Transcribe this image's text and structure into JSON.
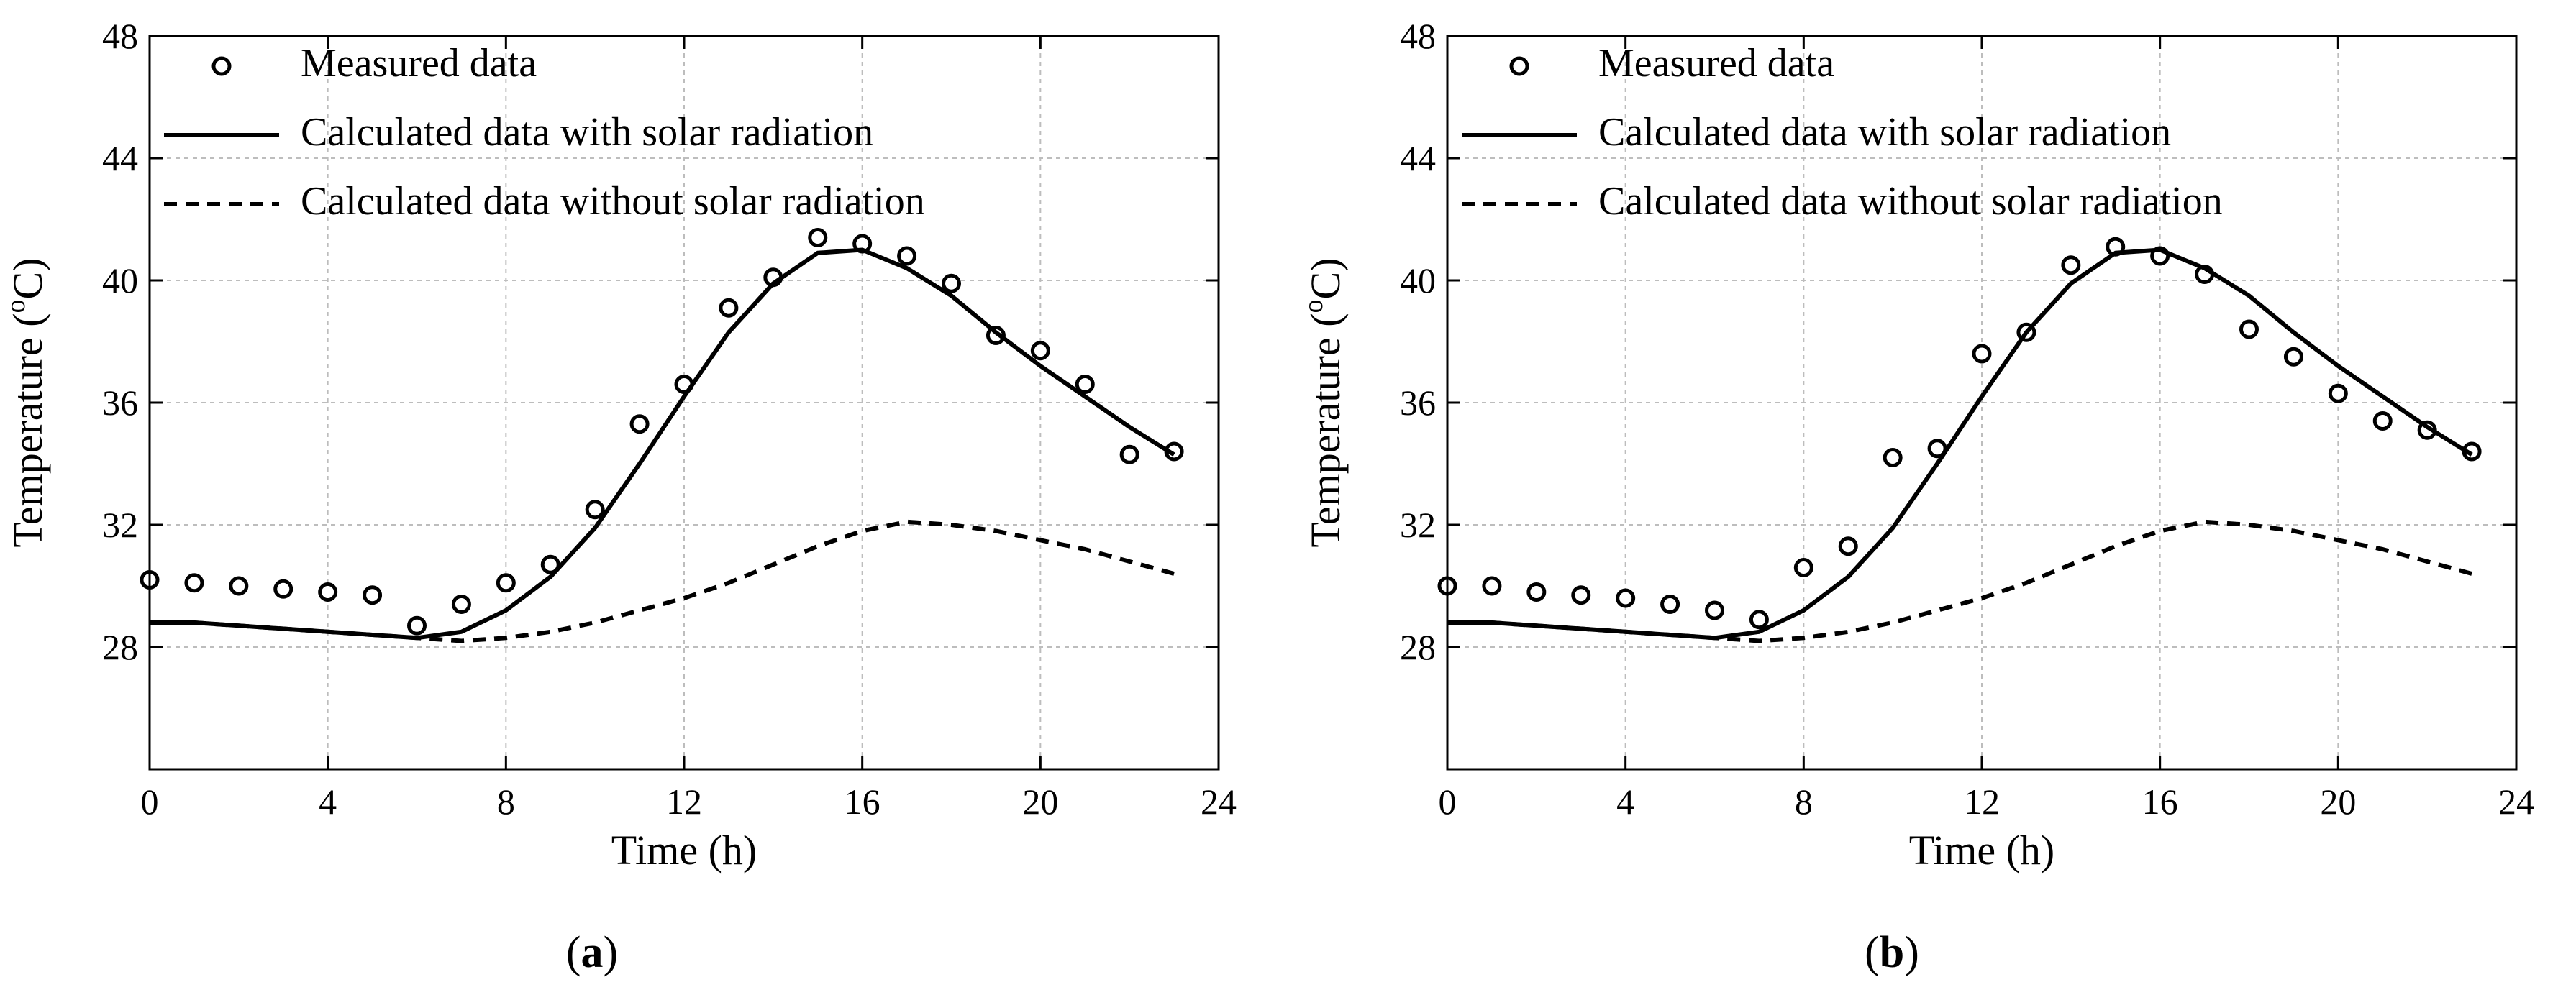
{
  "chart_data": [
    {
      "type": "line",
      "panel_label": "a",
      "xlabel": "Time (h)",
      "ylabel_main": "Temperature (",
      "ylabel_sup": "o",
      "ylabel_tail": "C)",
      "xlim": [
        0,
        24
      ],
      "ylim": [
        24,
        48
      ],
      "xticks": [
        0,
        4,
        8,
        12,
        16,
        20,
        24
      ],
      "yticks": [
        28,
        32,
        36,
        40,
        44,
        48
      ],
      "grid": true,
      "legend_position": "top-left",
      "series": [
        {
          "name": "Measured data",
          "style": "circle-markers",
          "x": [
            0,
            1,
            2,
            3,
            4,
            5,
            6,
            7,
            8,
            9,
            10,
            11,
            12,
            13,
            14,
            15,
            16,
            17,
            18,
            19,
            20,
            21,
            22,
            23
          ],
          "y": [
            30.2,
            30.1,
            30.0,
            29.9,
            29.8,
            29.7,
            28.7,
            29.4,
            30.1,
            30.7,
            32.5,
            35.3,
            36.6,
            39.1,
            40.1,
            41.4,
            41.2,
            40.8,
            39.9,
            38.2,
            37.7,
            36.6,
            34.3,
            34.4
          ]
        },
        {
          "name": "Calculated data with solar radiation",
          "style": "solid",
          "x": [
            0,
            1,
            2,
            3,
            4,
            5,
            6,
            7,
            8,
            9,
            10,
            11,
            12,
            13,
            14,
            15,
            16,
            17,
            18,
            19,
            20,
            21,
            22,
            23
          ],
          "y": [
            28.8,
            28.8,
            28.7,
            28.6,
            28.5,
            28.4,
            28.3,
            28.5,
            29.2,
            30.3,
            31.9,
            34.0,
            36.2,
            38.3,
            39.9,
            40.9,
            41.0,
            40.4,
            39.5,
            38.3,
            37.2,
            36.2,
            35.2,
            34.3
          ]
        },
        {
          "name": "Calculated data without solar radiation",
          "style": "dashed",
          "x": [
            0,
            1,
            2,
            3,
            4,
            5,
            6,
            7,
            8,
            9,
            10,
            11,
            12,
            13,
            14,
            15,
            16,
            17,
            18,
            19,
            20,
            21,
            22,
            23
          ],
          "y": [
            28.8,
            28.8,
            28.7,
            28.6,
            28.5,
            28.4,
            28.3,
            28.2,
            28.3,
            28.5,
            28.8,
            29.2,
            29.6,
            30.1,
            30.7,
            31.3,
            31.8,
            32.1,
            32.0,
            31.8,
            31.5,
            31.2,
            30.8,
            30.4
          ]
        }
      ]
    },
    {
      "type": "line",
      "panel_label": "b",
      "xlabel": "Time (h)",
      "ylabel_main": "Temperature (",
      "ylabel_sup": "o",
      "ylabel_tail": "C)",
      "xlim": [
        0,
        24
      ],
      "ylim": [
        24,
        48
      ],
      "xticks": [
        0,
        4,
        8,
        12,
        16,
        20,
        24
      ],
      "yticks": [
        28,
        32,
        36,
        40,
        44,
        48
      ],
      "grid": true,
      "legend_position": "top-left",
      "series": [
        {
          "name": "Measured data",
          "style": "circle-markers",
          "x": [
            0,
            1,
            2,
            3,
            4,
            5,
            6,
            7,
            8,
            9,
            10,
            11,
            12,
            13,
            14,
            15,
            16,
            17,
            18,
            19,
            20,
            21,
            22,
            23
          ],
          "y": [
            30.0,
            30.0,
            29.8,
            29.7,
            29.6,
            29.4,
            29.2,
            28.9,
            30.6,
            31.3,
            34.2,
            34.5,
            37.6,
            38.3,
            40.5,
            41.1,
            40.8,
            40.2,
            38.4,
            37.5,
            36.3,
            35.4,
            35.1,
            34.4
          ]
        },
        {
          "name": "Calculated data with solar radiation",
          "style": "solid",
          "x": [
            0,
            1,
            2,
            3,
            4,
            5,
            6,
            7,
            8,
            9,
            10,
            11,
            12,
            13,
            14,
            15,
            16,
            17,
            18,
            19,
            20,
            21,
            22,
            23
          ],
          "y": [
            28.8,
            28.8,
            28.7,
            28.6,
            28.5,
            28.4,
            28.3,
            28.5,
            29.2,
            30.3,
            31.9,
            34.0,
            36.2,
            38.3,
            39.9,
            40.9,
            41.0,
            40.4,
            39.5,
            38.3,
            37.2,
            36.2,
            35.2,
            34.3
          ]
        },
        {
          "name": "Calculated data without solar radiation",
          "style": "dashed",
          "x": [
            0,
            1,
            2,
            3,
            4,
            5,
            6,
            7,
            8,
            9,
            10,
            11,
            12,
            13,
            14,
            15,
            16,
            17,
            18,
            19,
            20,
            21,
            22,
            23
          ],
          "y": [
            28.8,
            28.8,
            28.7,
            28.6,
            28.5,
            28.4,
            28.3,
            28.2,
            28.3,
            28.5,
            28.8,
            29.2,
            29.6,
            30.1,
            30.7,
            31.3,
            31.8,
            32.1,
            32.0,
            31.8,
            31.5,
            31.2,
            30.8,
            30.4
          ]
        }
      ]
    }
  ]
}
